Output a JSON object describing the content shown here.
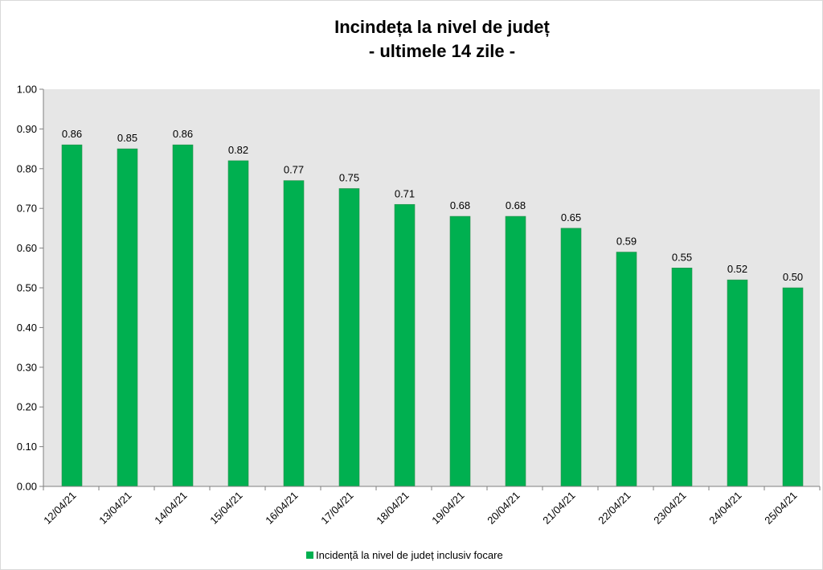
{
  "chart_data": {
    "type": "bar",
    "title": "Incindeța la nivel de județ",
    "subtitle": "- ultimele 14 zile -",
    "categories": [
      "12/04/21",
      "13/04/21",
      "14/04/21",
      "15/04/21",
      "16/04/21",
      "17/04/21",
      "18/04/21",
      "19/04/21",
      "20/04/21",
      "21/04/21",
      "22/04/21",
      "23/04/21",
      "24/04/21",
      "25/04/21"
    ],
    "series": [
      {
        "name": "Incidență la nivel de județ inclusiv focare",
        "values": [
          0.86,
          0.85,
          0.86,
          0.82,
          0.77,
          0.75,
          0.71,
          0.68,
          0.68,
          0.65,
          0.59,
          0.55,
          0.52,
          0.5
        ],
        "data_labels": [
          "0.86",
          "0.85",
          "0.86",
          "0.82",
          "0.77",
          "0.75",
          "0.71",
          "0.68",
          "0.68",
          "0.65",
          "0.59",
          "0.55",
          "0.52",
          "0.50"
        ],
        "color": "#00b050"
      }
    ],
    "ylim": [
      0,
      1.0
    ],
    "yticks": [
      "0.00",
      "0.10",
      "0.20",
      "0.30",
      "0.40",
      "0.50",
      "0.60",
      "0.70",
      "0.80",
      "0.90",
      "1.00"
    ],
    "xlabel": "",
    "ylabel": "",
    "grid": false,
    "plot_background": "#e6e6e6",
    "legend_position": "bottom"
  }
}
